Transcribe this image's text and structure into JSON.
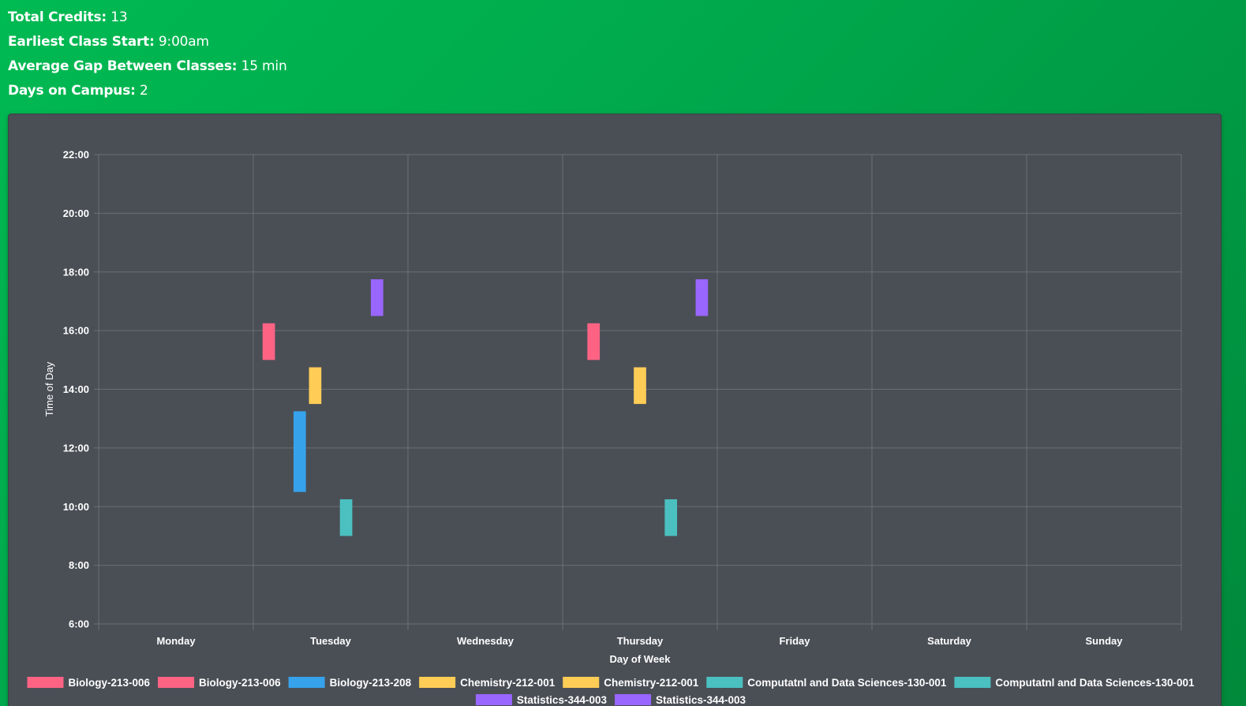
{
  "summary": {
    "total_credits_label": "Total Credits:",
    "total_credits_value": "13",
    "earliest_start_label": "Earliest Class Start:",
    "earliest_start_value": "9:00am",
    "avg_gap_label": "Average Gap Between Classes:",
    "avg_gap_value": "15 min",
    "days_label": "Days on Campus:",
    "days_value": "2"
  },
  "colors": {
    "page_gradient_start": "#00ba52",
    "page_gradient_end": "#00893a",
    "chart_background": "#4a4f56",
    "grid_line": "#6b6f73"
  },
  "chart_data": {
    "type": "bar",
    "subtype": "floating-range",
    "title": "",
    "xlabel": "Day of Week",
    "ylabel": "Time of Day",
    "categories": [
      "Monday",
      "Tuesday",
      "Wednesday",
      "Thursday",
      "Friday",
      "Saturday",
      "Sunday"
    ],
    "ylim": [
      6,
      22
    ],
    "yticks": [
      "6:00",
      "8:00",
      "10:00",
      "12:00",
      "14:00",
      "16:00",
      "18:00",
      "20:00",
      "22:00"
    ],
    "grid": true,
    "legend_position": "bottom",
    "series": [
      {
        "name": "Biology-213-006",
        "color": "#ff6384",
        "values": [
          null,
          [
            15.0,
            16.25
          ],
          null,
          null,
          null,
          null,
          null
        ]
      },
      {
        "name": "Biology-213-006",
        "color": "#ff6384",
        "values": [
          null,
          null,
          null,
          [
            15.0,
            16.25
          ],
          null,
          null,
          null
        ]
      },
      {
        "name": "Biology-213-208",
        "color": "#36a2eb",
        "values": [
          null,
          [
            10.5,
            13.25
          ],
          null,
          null,
          null,
          null,
          null
        ]
      },
      {
        "name": "Chemistry-212-001",
        "color": "#ffcd56",
        "values": [
          null,
          [
            13.5,
            14.75
          ],
          null,
          null,
          null,
          null,
          null
        ]
      },
      {
        "name": "Chemistry-212-001",
        "color": "#ffcd56",
        "values": [
          null,
          null,
          null,
          [
            13.5,
            14.75
          ],
          null,
          null,
          null
        ]
      },
      {
        "name": "Computatnl and Data Sciences-130-001",
        "color": "#4bc0c0",
        "values": [
          null,
          [
            9.0,
            10.25
          ],
          null,
          null,
          null,
          null,
          null
        ]
      },
      {
        "name": "Computatnl and Data Sciences-130-001",
        "color": "#4bc0c0",
        "values": [
          null,
          null,
          null,
          [
            9.0,
            10.25
          ],
          null,
          null,
          null
        ]
      },
      {
        "name": "Statistics-344-003",
        "color": "#9966ff",
        "values": [
          null,
          [
            16.5,
            17.75
          ],
          null,
          null,
          null,
          null,
          null
        ]
      },
      {
        "name": "Statistics-344-003",
        "color": "#9966ff",
        "values": [
          null,
          null,
          null,
          [
            16.5,
            17.75
          ],
          null,
          null,
          null
        ]
      }
    ]
  }
}
